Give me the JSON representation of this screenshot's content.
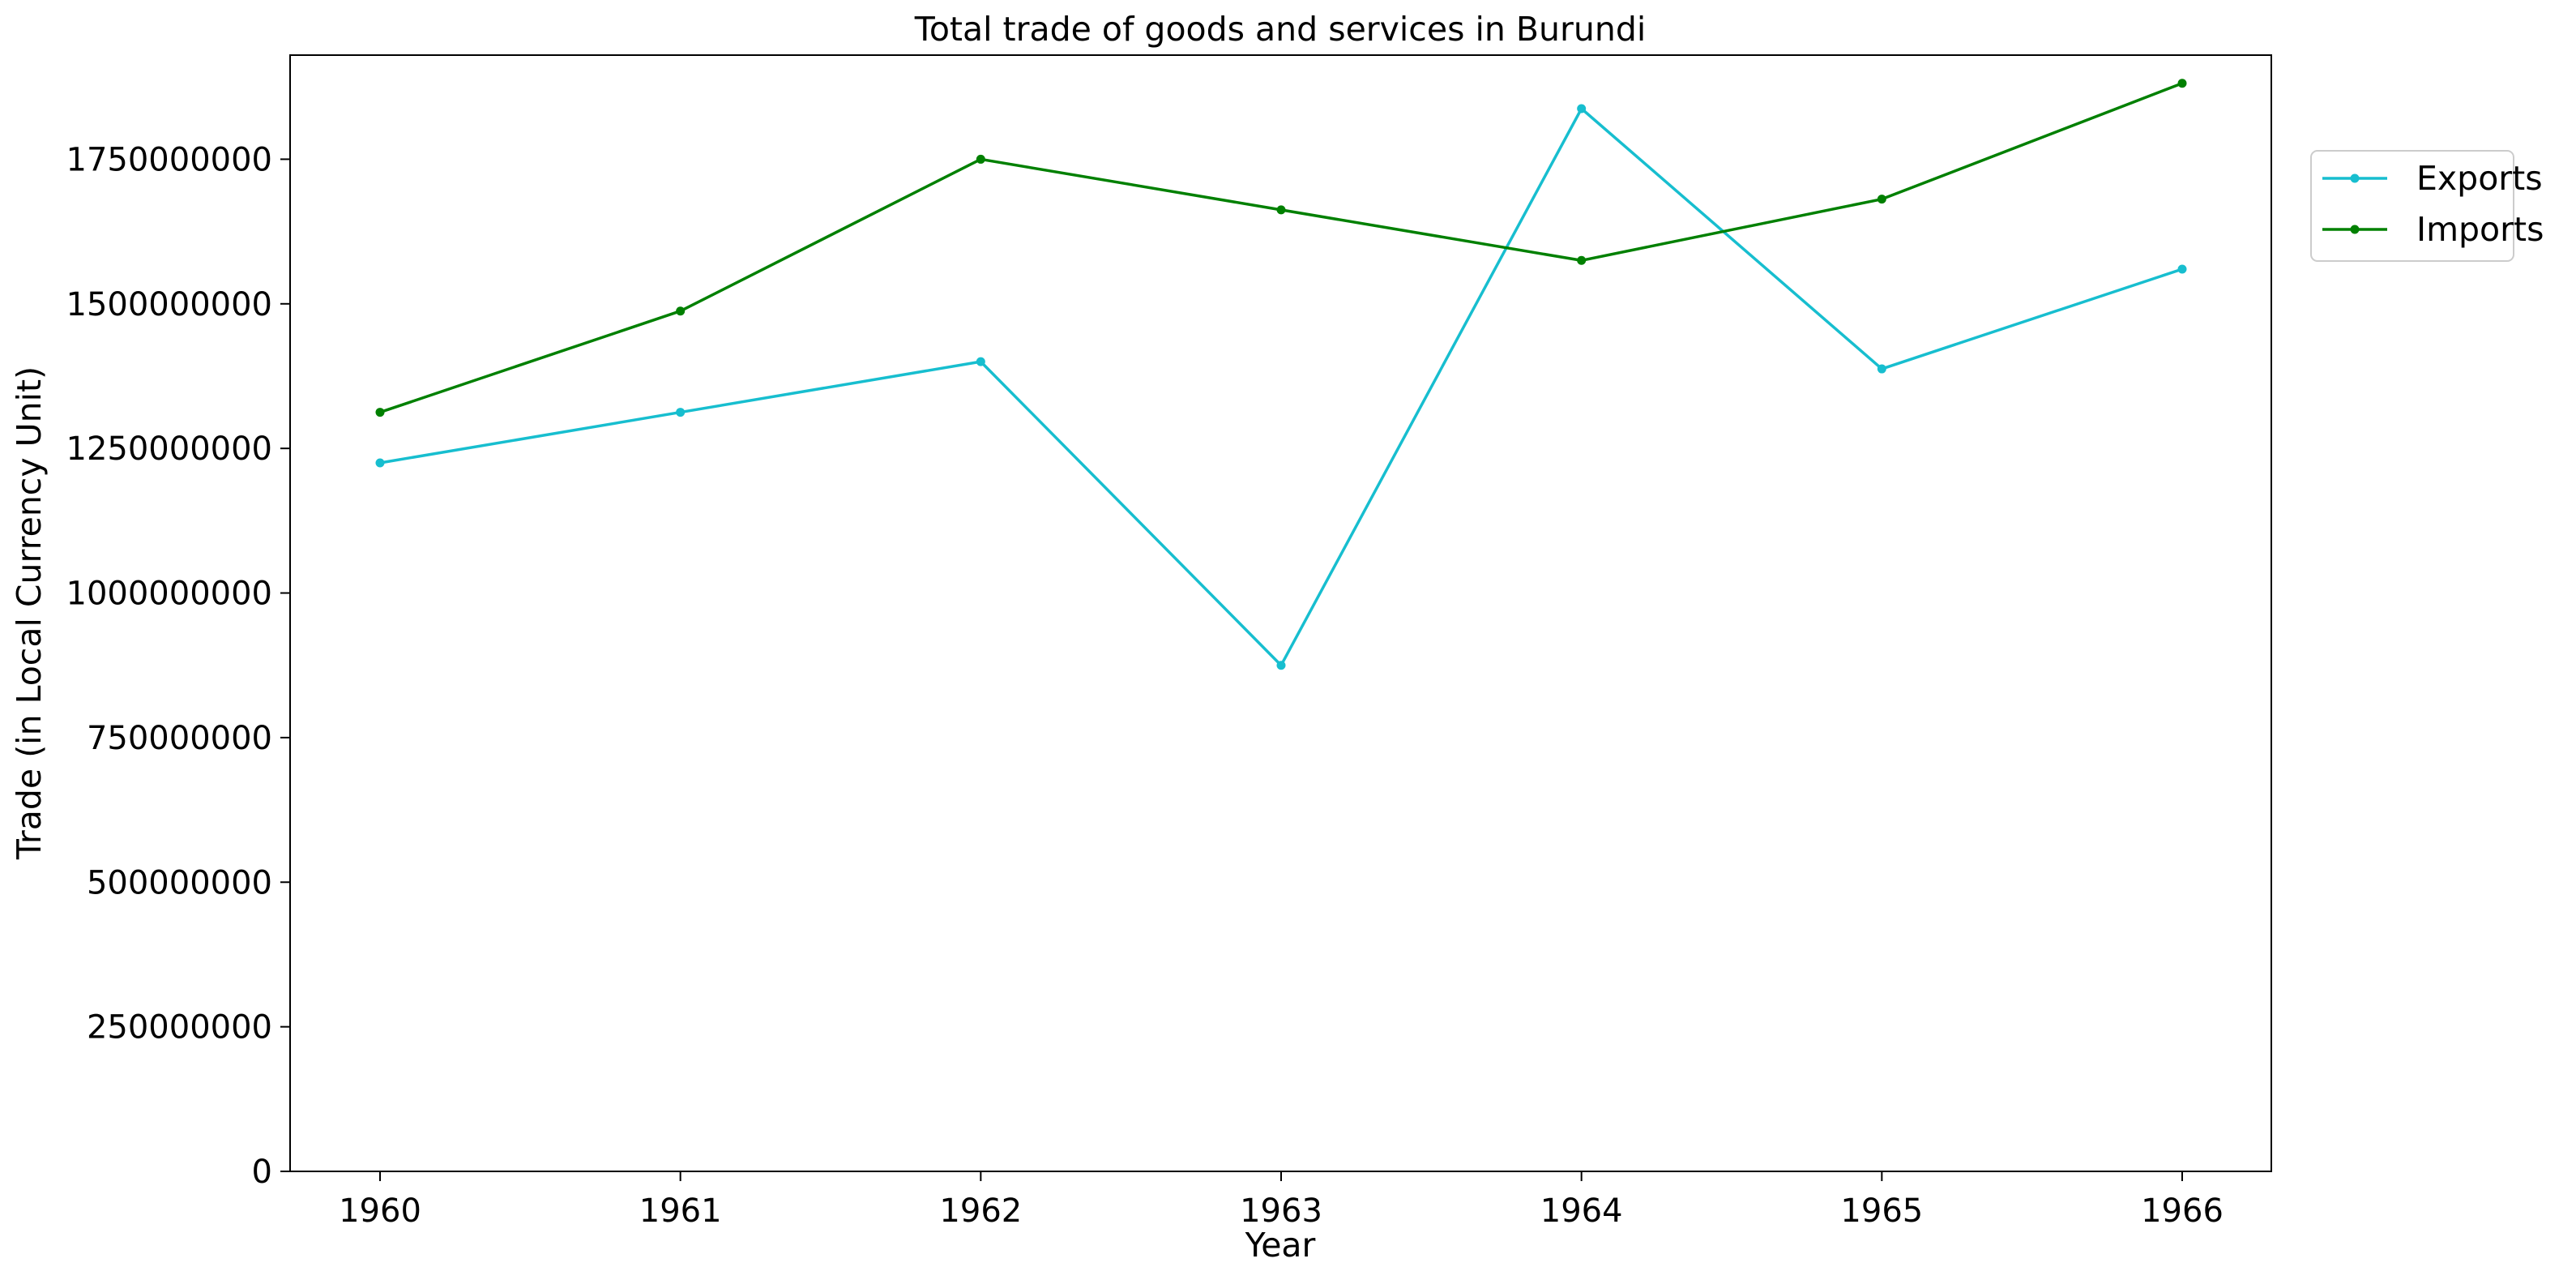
{
  "chart_data": {
    "type": "line",
    "title": "Total trade of goods and services in Burundi",
    "xlabel": "Year",
    "ylabel": "Trade (in Local Currency Unit)",
    "x": [
      "1960",
      "1961",
      "1962",
      "1963",
      "1964",
      "1965",
      "1966"
    ],
    "ylim": [
      0,
      1930000000
    ],
    "yticks": [
      "0",
      "250000000",
      "500000000",
      "750000000",
      "1000000000",
      "1250000000",
      "1500000000",
      "1750000000"
    ],
    "grid": false,
    "legend_position": "upper-right-outside",
    "series": [
      {
        "name": "Exports",
        "color": "#17becf",
        "values": [
          1225000000,
          1312500000,
          1400000000,
          875000000,
          1837500000,
          1387500000,
          1560000000
        ]
      },
      {
        "name": "Imports",
        "color": "#008000",
        "values": [
          1312500000,
          1487500000,
          1750000000,
          1662500000,
          1575000000,
          1681000000,
          1881250000
        ]
      }
    ]
  }
}
